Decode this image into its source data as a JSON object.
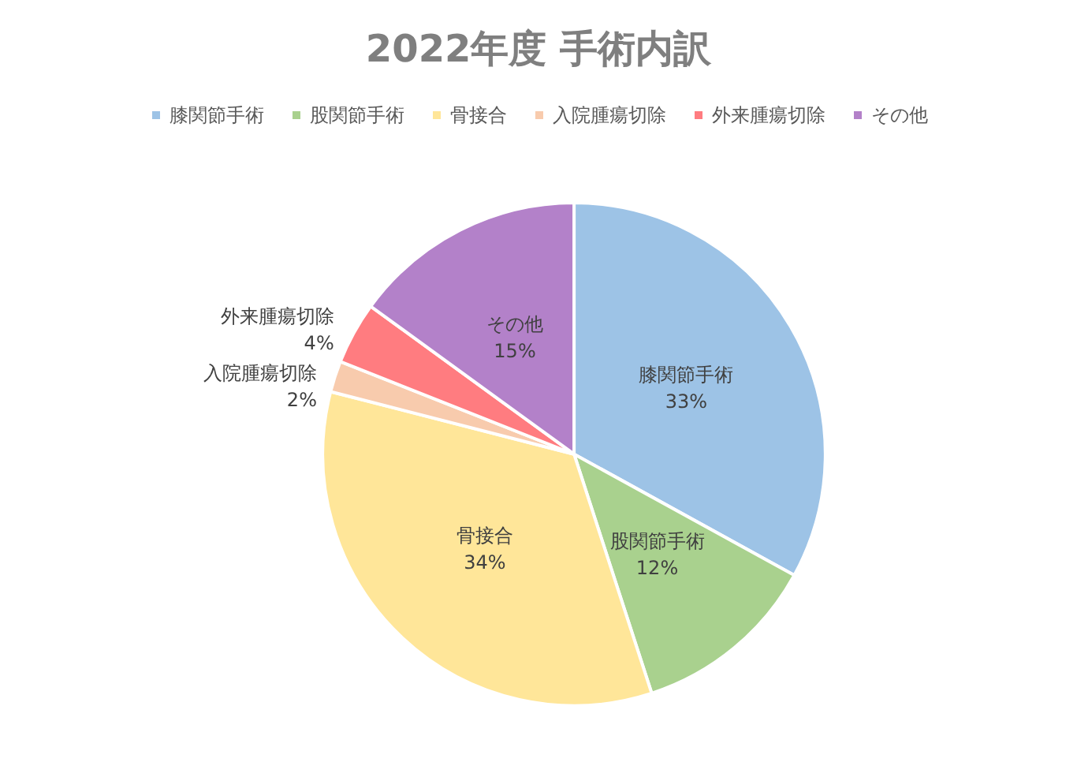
{
  "chart_data": {
    "type": "pie",
    "title": "2022年度 手術内訳",
    "categories": [
      "膝関節手術",
      "股関節手術",
      "骨接合",
      "入院腫瘍切除",
      "外来腫瘍切除",
      "その他"
    ],
    "values": [
      33,
      12,
      34,
      2,
      4,
      15
    ],
    "value_labels": [
      "33%",
      "12%",
      "34%",
      "2%",
      "4%",
      "15%"
    ],
    "colors": [
      "#9dc3e6",
      "#a9d18e",
      "#ffe699",
      "#f8cbad",
      "#ff7c80",
      "#b381c9"
    ],
    "legend": "top"
  }
}
